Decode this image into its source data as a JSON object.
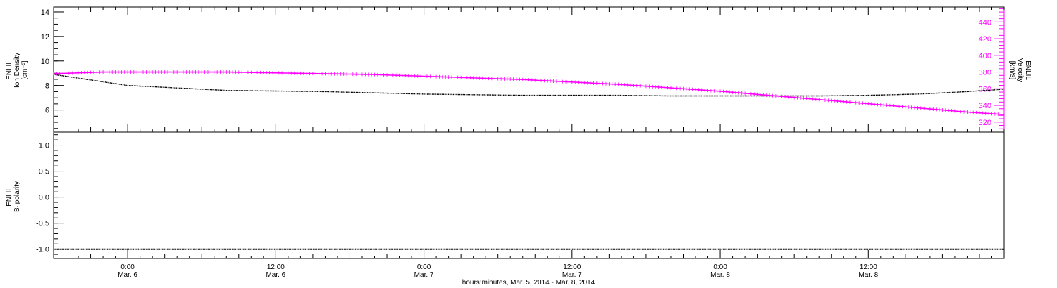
{
  "colors": {
    "density": "#000000",
    "velocity": "#ff00ff",
    "polarity": "#000000",
    "axis": "#000000"
  },
  "xaxis": {
    "title": "hours:minutes, Mar. 5, 2014 - Mar. 8, 2014",
    "range_hours": [
      -6,
      71
    ],
    "ticks": [
      {
        "hour": 0,
        "time": "0:00",
        "date": "Mar. 6"
      },
      {
        "hour": 12,
        "time": "12:00",
        "date": "Mar. 6"
      },
      {
        "hour": 24,
        "time": "0:00",
        "date": "Mar. 7"
      },
      {
        "hour": 36,
        "time": "12:00",
        "date": "Mar. 7"
      },
      {
        "hour": 48,
        "time": "0:00",
        "date": "Mar. 8"
      },
      {
        "hour": 60,
        "time": "12:00",
        "date": "Mar. 8"
      }
    ]
  },
  "chart_data": [
    {
      "type": "line",
      "panel": "top",
      "xlabel": "hours:minutes, Mar. 5, 2014 - Mar. 8, 2014",
      "left_axis": {
        "label_lines": [
          "ENLIL",
          "Ion Density",
          "[cm⁻³]"
        ],
        "ylim": [
          4.2,
          14.4
        ],
        "ticks": [
          "6",
          "8",
          "10",
          "12",
          "14"
        ],
        "tick_values": [
          6,
          8,
          10,
          12,
          14
        ]
      },
      "right_axis": {
        "label_lines": [
          "ENLIL",
          "Velocity",
          "[km/s]"
        ],
        "ylim": [
          308,
          458
        ],
        "ticks": [
          "320",
          "340",
          "360",
          "380",
          "400",
          "420",
          "440"
        ],
        "tick_values": [
          320,
          340,
          360,
          380,
          400,
          420,
          440
        ]
      },
      "series": [
        {
          "axis": "left",
          "x": [
            -6,
            -4,
            -2,
            0,
            4,
            8,
            12,
            16,
            20,
            24,
            28,
            32,
            36,
            40,
            44,
            48,
            52,
            56,
            60,
            64,
            68,
            71
          ],
          "values": [
            8.9,
            8.6,
            8.3,
            8.0,
            7.8,
            7.6,
            7.55,
            7.5,
            7.4,
            7.3,
            7.25,
            7.2,
            7.2,
            7.2,
            7.15,
            7.15,
            7.15,
            7.15,
            7.2,
            7.3,
            7.5,
            7.7
          ]
        },
        {
          "axis": "right",
          "x": [
            -6,
            -2,
            0,
            4,
            8,
            12,
            16,
            20,
            24,
            28,
            32,
            36,
            40,
            44,
            48,
            52,
            56,
            60,
            64,
            68,
            71
          ],
          "values": [
            378,
            380,
            380,
            380,
            380,
            379,
            378,
            377,
            375,
            373,
            371,
            368,
            365,
            361,
            357,
            352,
            347,
            342,
            337,
            332,
            329
          ]
        }
      ]
    },
    {
      "type": "line",
      "panel": "bottom",
      "xlabel": "hours:minutes, Mar. 5, 2014 - Mar. 8, 2014",
      "left_axis": {
        "label_lines": [
          "ENLIL",
          "Bᵣ polarity"
        ],
        "ylim": [
          -1.18,
          1.25
        ],
        "ticks": [
          "-1.0",
          "-0.5",
          "0.0",
          "0.5",
          "1.0"
        ],
        "tick_values": [
          -1.0,
          -0.5,
          0.0,
          0.5,
          1.0
        ]
      },
      "series": [
        {
          "axis": "left",
          "x": [
            -6,
            71
          ],
          "values": [
            -1.0,
            -1.0
          ]
        }
      ]
    }
  ]
}
